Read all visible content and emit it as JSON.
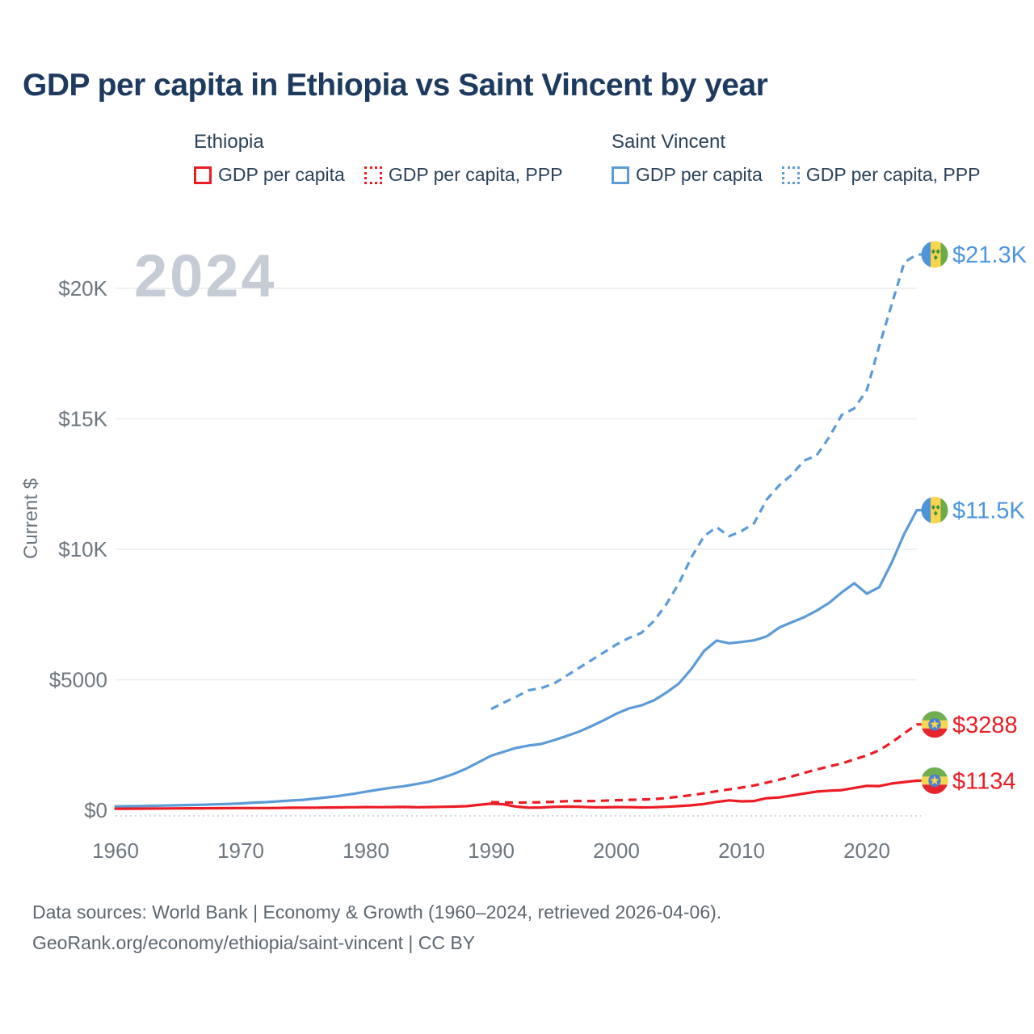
{
  "page": {
    "title": "GDP per capita in Ethiopia vs Saint Vincent by year",
    "watermark": "2024",
    "footer": {
      "line1": "Data sources: World Bank | Economy & Growth (1960–2024, retrieved 2026-04-06).",
      "line2": "GeoRank.org/economy/ethiopia/saint-vincent | CC BY"
    }
  },
  "colors": {
    "ethiopia": "#EC1B24",
    "saint_vincent": "#5B9BD8",
    "ethiopia_label": "#EB1C24",
    "saint_vincent_label": "#4D96E0",
    "title_text": "#1E3A5F",
    "axis_text": "#6E7780",
    "gridline": "#EAEBEE",
    "watermark": "#C6CCD5"
  },
  "legend": {
    "groups": [
      {
        "country": "Ethiopia",
        "color": "#EC1B24",
        "items": [
          {
            "label": "GDP per capita",
            "style": "solid"
          },
          {
            "label": "GDP per capita, PPP",
            "style": "dotted"
          }
        ]
      },
      {
        "country": "Saint Vincent",
        "color": "#5B9BD8",
        "items": [
          {
            "label": "GDP per capita",
            "style": "solid"
          },
          {
            "label": "GDP per capita, PPP",
            "style": "dotted"
          }
        ]
      }
    ]
  },
  "chart_data": {
    "type": "line",
    "title": "GDP per capita in Ethiopia vs Saint Vincent by year",
    "xlabel": "",
    "ylabel": "Current $",
    "x_range": [
      1960,
      2024
    ],
    "y_range": [
      0,
      21500
    ],
    "grid": true,
    "legend_position": "top",
    "x_ticks": [
      1960,
      1970,
      1980,
      1990,
      2000,
      2010,
      2020
    ],
    "y_ticks": [
      {
        "value": 0,
        "label": "$0"
      },
      {
        "value": 5000,
        "label": "$5000"
      },
      {
        "value": 10000,
        "label": "$10K"
      },
      {
        "value": 15000,
        "label": "$15K"
      },
      {
        "value": 20000,
        "label": "$20K"
      }
    ],
    "series": [
      {
        "name": "Saint Vincent GDP per capita, PPP",
        "country": "Saint Vincent",
        "dash": "dashed",
        "color": "#5B9BD8",
        "label_color": "#4D96E0",
        "start_year": 1990,
        "end_label": "$21.3K",
        "values": [
          3880,
          4120,
          4350,
          4600,
          4680,
          4850,
          5150,
          5450,
          5750,
          6050,
          6350,
          6600,
          6800,
          7250,
          7900,
          8700,
          9700,
          10500,
          10850,
          10500,
          10700,
          11000,
          11900,
          12450,
          12850,
          13400,
          13600,
          14300,
          15150,
          15400,
          16100,
          17800,
          19400,
          21000,
          21300
        ]
      },
      {
        "name": "Saint Vincent GDP per capita",
        "country": "Saint Vincent",
        "dash": "solid",
        "color": "#5B9BD8",
        "label_color": "#4D96E0",
        "start_year": 1960,
        "end_label": "$11.5K",
        "values": [
          150,
          155,
          160,
          170,
          180,
          190,
          200,
          210,
          225,
          240,
          260,
          290,
          310,
          340,
          370,
          400,
          450,
          500,
          560,
          630,
          710,
          790,
          860,
          920,
          1000,
          1090,
          1230,
          1390,
          1590,
          1840,
          2090,
          2240,
          2390,
          2480,
          2540,
          2680,
          2840,
          3010,
          3220,
          3450,
          3700,
          3900,
          4020,
          4210,
          4510,
          4860,
          5420,
          6100,
          6500,
          6400,
          6450,
          6510,
          6660,
          7000,
          7200,
          7400,
          7650,
          7950,
          8350,
          8700,
          8300,
          8550,
          9500,
          10600,
          11500
        ]
      },
      {
        "name": "Ethiopia GDP per capita, PPP",
        "country": "Ethiopia",
        "dash": "dashed",
        "color": "#EC1B24",
        "label_color": "#EB1C24",
        "start_year": 1990,
        "end_label": "$3288",
        "values": [
          310,
          300,
          290,
          296,
          306,
          322,
          346,
          356,
          350,
          364,
          385,
          400,
          410,
          426,
          466,
          520,
          580,
          650,
          730,
          800,
          870,
          950,
          1060,
          1170,
          1290,
          1430,
          1560,
          1680,
          1790,
          1950,
          2100,
          2300,
          2600,
          2950,
          3288
        ]
      },
      {
        "name": "Ethiopia GDP per capita",
        "country": "Ethiopia",
        "dash": "solid",
        "color": "#EC1B24",
        "label_color": "#EB1C24",
        "start_year": 1960,
        "end_label": "$1134",
        "values": [
          58,
          60,
          62,
          65,
          68,
          70,
          73,
          75,
          77,
          80,
          83,
          85,
          84,
          88,
          95,
          97,
          100,
          104,
          108,
          114,
          120,
          118,
          122,
          126,
          115,
          120,
          130,
          140,
          155,
          205,
          250,
          225,
          140,
          100,
          105,
          130,
          138,
          132,
          116,
          110,
          122,
          117,
          108,
          116,
          132,
          158,
          188,
          238,
          318,
          378,
          342,
          352,
          462,
          490,
          565,
          640,
          715,
          750,
          772,
          855,
          935,
          925,
          1025,
          1080,
          1134
        ]
      }
    ]
  }
}
